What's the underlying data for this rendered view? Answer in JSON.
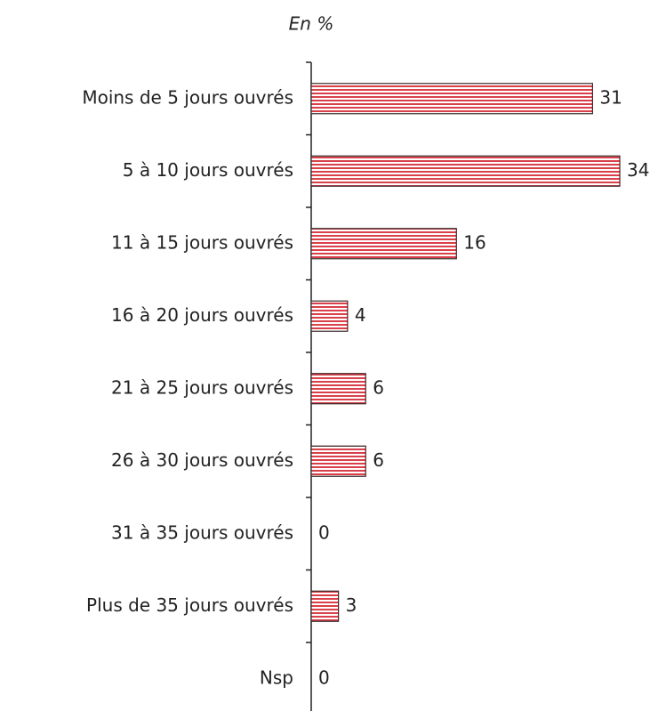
{
  "chart_data": {
    "type": "bar",
    "orientation": "horizontal",
    "title": "En %",
    "categories": [
      "Moins de 5 jours ouvrés",
      "5 à 10 jours ouvrés",
      "11 à 15 jours ouvrés",
      "16 à 20 jours ouvrés",
      "21 à 25 jours ouvrés",
      "26 à 30 jours ouvrés",
      "31 à 35 jours ouvrés",
      "Plus de 35 jours ouvrés",
      "Nsp"
    ],
    "values": [
      31,
      34,
      16,
      4,
      6,
      6,
      0,
      3,
      0
    ],
    "color": "#d9404a"
  }
}
